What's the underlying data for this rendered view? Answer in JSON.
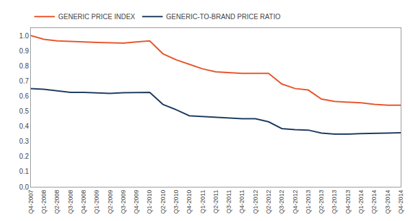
{
  "chart_data": {
    "type": "line",
    "categories": [
      "Q4-2007",
      "Q1-2008",
      "Q2-2008",
      "Q3-2008",
      "Q4-2008",
      "Q1-2009",
      "Q2-2009",
      "Q3-2009",
      "Q4-2009",
      "Q1-2010",
      "Q2-2010",
      "Q3-2010",
      "Q4-2010",
      "Q1-2011",
      "Q2-2011",
      "Q3-2011",
      "Q4-2011",
      "Q1-2012",
      "Q2-2012",
      "Q3-2012",
      "Q4-2012",
      "Q1-2013",
      "Q2-2013",
      "Q3-2013",
      "Q4-2013",
      "Q1-2014",
      "Q2-2014",
      "Q3-2014",
      "Q4-2014"
    ],
    "series": [
      {
        "name": "GENERIC PRICE INDEX",
        "color": "#E8542A",
        "values": [
          1.0,
          0.975,
          0.965,
          0.96,
          0.958,
          0.955,
          0.952,
          0.95,
          0.958,
          0.965,
          0.88,
          0.84,
          0.81,
          0.78,
          0.76,
          0.755,
          0.75,
          0.75,
          0.75,
          0.68,
          0.65,
          0.64,
          0.58,
          0.565,
          0.56,
          0.555,
          0.545,
          0.54,
          0.54
        ]
      },
      {
        "name": "GENERIC-TO-BRAND PRICE RATIO",
        "color": "#1C3A5E",
        "values": [
          0.65,
          0.645,
          0.635,
          0.625,
          0.625,
          0.62,
          0.618,
          0.622,
          0.625,
          0.625,
          0.545,
          0.51,
          0.47,
          0.465,
          0.46,
          0.452,
          0.45,
          0.45,
          0.43,
          0.385,
          0.378,
          0.375,
          0.355,
          0.348,
          0.348,
          0.352,
          0.352,
          0.355,
          0.358
        ]
      }
    ],
    "ylim": [
      0.0,
      1.05
    ],
    "yticks": [
      {
        "value": 0,
        "label": "0.0"
      },
      0.1,
      0.2,
      0.3,
      0.4,
      0.5,
      0.6,
      0.7,
      0.8,
      0.9,
      {
        "value": 1,
        "label": "1.0"
      }
    ],
    "grid": false,
    "legend": "upper left"
  }
}
